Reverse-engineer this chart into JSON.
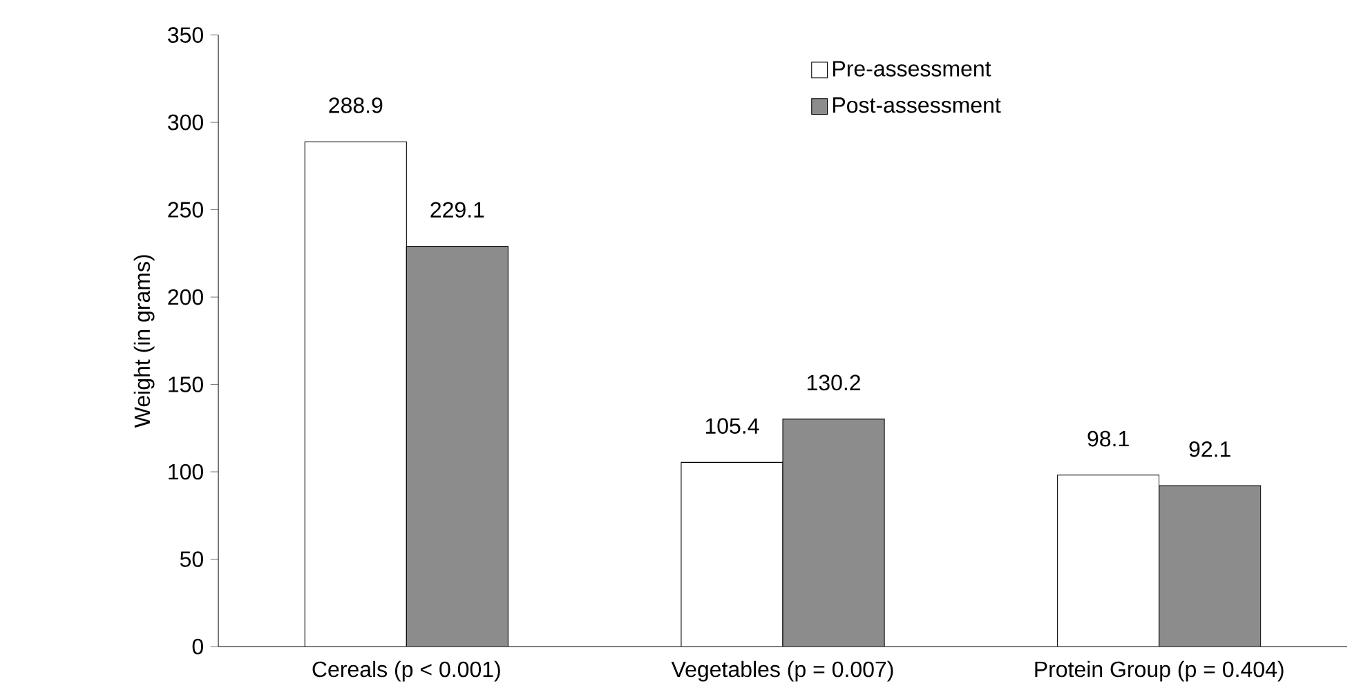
{
  "chart_data": {
    "type": "bar",
    "ylabel": "Weight (in grams)",
    "categories": [
      "Cereals (p < 0.001)",
      "Vegetables (p = 0.007)",
      "Protein Group (p = 0.404)"
    ],
    "series": [
      {
        "name": "Pre-assessment",
        "color": "#ffffff",
        "values": [
          288.9,
          105.4,
          98.1
        ]
      },
      {
        "name": "Post-assessment",
        "color": "#8c8c8c",
        "values": [
          229.1,
          130.2,
          92.1
        ]
      }
    ],
    "ylim": [
      0,
      350
    ],
    "yticks": [
      0,
      50,
      100,
      150,
      200,
      250,
      300,
      350
    ],
    "data_labels": true,
    "legend": "top right"
  }
}
